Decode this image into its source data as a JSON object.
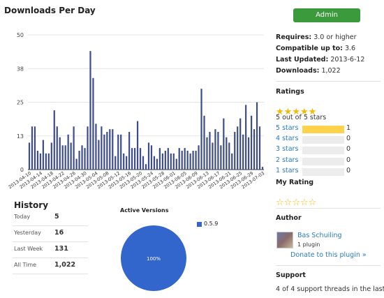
{
  "chart_title": "Downloads Per Day",
  "chart_data": {
    "type": "bar",
    "title": "Downloads Per Day",
    "xlabel": "",
    "ylabel": "",
    "ylim": [
      0,
      50
    ],
    "yticks": [
      "0",
      "13",
      "25",
      "38",
      "50"
    ],
    "ytick_values": [
      0,
      12.5,
      25,
      37.5,
      50
    ],
    "grid": true,
    "bar_color": "#3b4b8c",
    "categories": [
      "2013-04-10",
      "2013-04-11",
      "2013-04-12",
      "2013-04-13",
      "2013-04-14",
      "2013-04-15",
      "2013-04-16",
      "2013-04-17",
      "2013-04-18",
      "2013-04-19",
      "2013-04-20",
      "2013-04-21",
      "2013-04-22",
      "2013-04-23",
      "2013-04-24",
      "2013-04-25",
      "2013-04-26",
      "2013-04-27",
      "2013-04-28",
      "2013-04-29",
      "2013-04-30",
      "2013-05-01",
      "2013-05-02",
      "2013-05-03",
      "2013-05-04",
      "2013-05-05",
      "2013-05-06",
      "2013-05-07",
      "2013-05-08",
      "2013-05-09",
      "2013-05-10",
      "2013-05-11",
      "2013-05-12",
      "2013-05-13",
      "2013-05-14",
      "2013-05-15",
      "2013-05-16",
      "2013-05-17",
      "2013-05-18",
      "2013-05-19",
      "2013-05-20",
      "2013-05-21",
      "2013-05-22",
      "2013-05-23",
      "2013-05-24",
      "2013-05-25",
      "2013-05-26",
      "2013-05-27",
      "2013-05-28",
      "2013-05-29",
      "2013-05-30",
      "2013-05-31",
      "2013-06-01",
      "2013-06-02",
      "2013-06-03",
      "2013-06-04",
      "2013-06-05",
      "2013-06-06",
      "2013-06-07",
      "2013-06-08",
      "2013-06-09",
      "2013-06-10",
      "2013-06-11",
      "2013-06-12",
      "2013-06-13",
      "2013-06-14",
      "2013-06-15",
      "2013-06-16",
      "2013-06-17",
      "2013-06-18",
      "2013-06-19",
      "2013-06-20",
      "2013-06-21",
      "2013-06-22",
      "2013-06-23",
      "2013-06-24",
      "2013-06-25",
      "2013-06-26",
      "2013-06-27",
      "2013-06-28",
      "2013-06-29",
      "2013-06-30",
      "2013-07-01",
      "2013-07-02",
      "2013-07-03"
    ],
    "tick_labels": [
      "2013-04-10",
      "2013-04-14",
      "2013-04-18",
      "2013-04-22",
      "2013-04-26",
      "2013-04-30",
      "2013-05-04",
      "2013-05-08",
      "2013-05-12",
      "2013-05-16",
      "2013-05-20",
      "2013-05-24",
      "2013-05-28",
      "2013-06-01",
      "2013-06-05",
      "2013-06-09",
      "2013-06-13",
      "2013-06-17",
      "2013-06-21",
      "2013-06-25",
      "2013-06-29",
      "2013-07-03"
    ],
    "values": [
      10,
      16,
      16,
      7,
      6,
      11,
      6,
      6,
      10,
      22,
      16,
      12,
      9,
      9,
      13,
      10,
      16,
      4,
      7,
      9,
      8,
      16,
      44,
      34,
      17,
      11,
      16,
      13,
      14,
      15,
      15,
      5,
      13,
      13,
      6,
      5,
      14,
      8,
      8,
      18,
      8,
      5,
      2,
      10,
      9,
      5,
      4,
      8,
      6,
      7,
      8,
      6,
      6,
      4,
      8,
      7,
      8,
      7,
      6,
      7,
      7,
      9,
      30,
      20,
      12,
      14,
      10,
      15,
      14,
      9,
      19,
      12,
      10,
      6,
      14,
      16,
      19,
      13,
      24,
      12,
      20,
      15,
      25,
      16,
      1
    ]
  },
  "history": {
    "title": "History",
    "rows": [
      {
        "label": "Today",
        "value": "5"
      },
      {
        "label": "Yesterday",
        "value": "16"
      },
      {
        "label": "Last Week",
        "value": "131"
      },
      {
        "label": "All Time",
        "value": "1,022"
      }
    ]
  },
  "pie": {
    "title": "Active Versions",
    "legend_label": "0.5.9",
    "slice_label": "100%",
    "color": "#3366cc",
    "values": [
      100
    ]
  },
  "sidebar": {
    "admin_label": "Admin",
    "requires_label": "Requires:",
    "requires_value": "3.0 or higher",
    "compatible_label": "Compatible up to:",
    "compatible_value": "3.6",
    "updated_label": "Last Updated:",
    "updated_value": "2013-6-12",
    "downloads_label": "Downloads:",
    "downloads_value": "1,022",
    "ratings_title": "Ratings",
    "rating_stars": 5,
    "rating_summary": "5 out of 5 stars",
    "ratings": [
      {
        "label": "5 stars",
        "count": "1",
        "fraction": 1.0
      },
      {
        "label": "4 stars",
        "count": "0",
        "fraction": 0
      },
      {
        "label": "3 stars",
        "count": "0",
        "fraction": 0
      },
      {
        "label": "2 stars",
        "count": "0",
        "fraction": 0
      },
      {
        "label": "1 stars",
        "count": "0",
        "fraction": 0
      }
    ],
    "my_rating_title": "My Rating",
    "my_rating_stars": 0,
    "author_title": "Author",
    "author_name": "Bas Schuiling",
    "author_plugins": "1 plugin",
    "donate_label": "Donate to this plugin »",
    "support_title": "Support",
    "support_text": "4 of 4 support threads in the last"
  },
  "colors": {
    "admin_green": "#3b9a3b",
    "link_blue": "#2a7bbf",
    "star_gold": "#f6b800",
    "rating_fill": "#ffd24d"
  }
}
